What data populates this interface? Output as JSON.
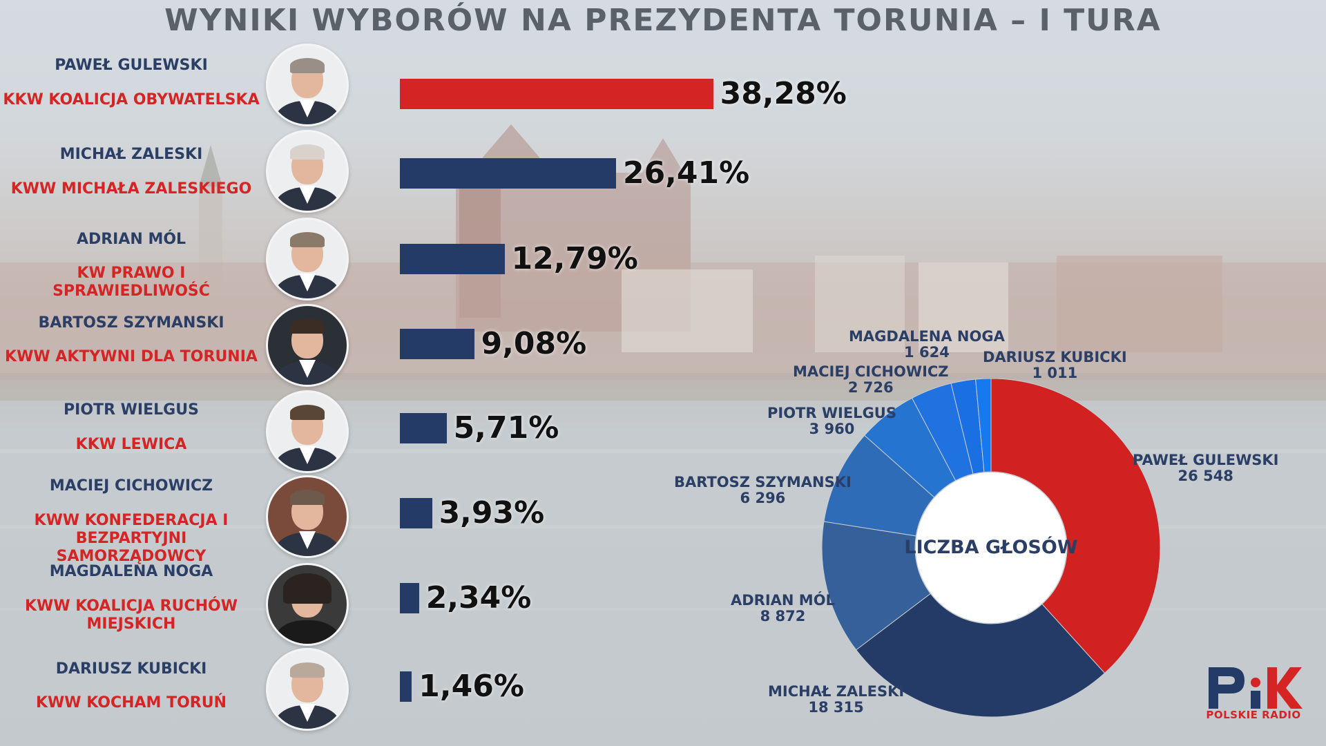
{
  "title": "WYNIKI WYBORÓW NA PREZYDENTA TORUNIA – I TURA",
  "colors": {
    "gulewski_red": "#d52424",
    "navy": "#233b66",
    "title_grey": "#5b6168"
  },
  "candidates": [
    {
      "name": "PAWEŁ GULEWSKI",
      "party": "KKW KOALICJA OBYWATELSKA",
      "pct_label": "38,28%"
    },
    {
      "name": "MICHAŁ ZALESKI",
      "party": "KWW MICHAŁA ZALESKIEGO",
      "pct_label": "26,41%"
    },
    {
      "name": "ADRIAN MÓL",
      "party": "KW PRAWO I SPRAWIEDLIWOŚĆ",
      "pct_label": "12,79%"
    },
    {
      "name": "BARTOSZ SZYMANSKI",
      "party": "KWW AKTYWNI DLA TORUNIA",
      "pct_label": "9,08%"
    },
    {
      "name": "PIOTR WIELGUS",
      "party": "KKW LEWICA",
      "pct_label": "5,71%"
    },
    {
      "name": "MACIEJ CICHOWICZ",
      "party": "KWW KONFEDERACJA I BEZPARTYJNI SAMORZĄDOWCY",
      "pct_label": "3,93%"
    },
    {
      "name": "MAGDALENA NOGA",
      "party": "KWW KOALICJA RUCHÓW MIEJSKICH",
      "pct_label": "2,34%"
    },
    {
      "name": "DARIUSZ KUBICKI",
      "party": "KWW KOCHAM TORUŃ",
      "pct_label": "1,46%"
    }
  ],
  "donut": {
    "center_label": "LICZBA GŁOSÓW",
    "labels": [
      {
        "name": "PAWEŁ GULEWSKI",
        "value_label": "26 548"
      },
      {
        "name": "MICHAŁ ZALESKI",
        "value_label": "18 315"
      },
      {
        "name": "ADRIAN MÓL",
        "value_label": "8 872"
      },
      {
        "name": "BARTOSZ SZYMANSKI",
        "value_label": "6 296"
      },
      {
        "name": "PIOTR WIELGUS",
        "value_label": "3 960"
      },
      {
        "name": "MACIEJ CICHOWICZ",
        "value_label": "2 726"
      },
      {
        "name": "MAGDALENA NOGA",
        "value_label": "1 624"
      },
      {
        "name": "DARIUSZ KUBICKI",
        "value_label": "1 011"
      }
    ]
  },
  "logo": {
    "mark": "PiK",
    "caption": "POLSKIE RADIO"
  },
  "chart_data": [
    {
      "type": "bar",
      "orientation": "horizontal",
      "categories": [
        "PAWEŁ GULEWSKI",
        "MICHAŁ ZALESKI",
        "ADRIAN MÓL",
        "BARTOSZ SZYMANSKI",
        "PIOTR WIELGUS",
        "MACIEJ CICHOWICZ",
        "MAGDALENA NOGA",
        "DARIUSZ KUBICKI"
      ],
      "values": [
        38.28,
        26.41,
        12.79,
        9.08,
        5.71,
        3.93,
        2.34,
        1.46
      ],
      "colors": [
        "#d52424",
        "#233b66",
        "#233b66",
        "#233b66",
        "#233b66",
        "#233b66",
        "#233b66",
        "#233b66"
      ]
    },
    {
      "type": "pie",
      "donut": true,
      "title": "LICZBA GŁOSÓW",
      "categories": [
        "PAWEŁ GULEWSKI",
        "MICHAŁ ZALESKI",
        "ADRIAN MÓL",
        "BARTOSZ SZYMANSKI",
        "PIOTR WIELGUS",
        "MACIEJ CICHOWICZ",
        "MAGDALENA NOGA",
        "DARIUSZ KUBICKI"
      ],
      "values": [
        26548,
        18315,
        8872,
        6296,
        3960,
        2726,
        1624,
        1011
      ],
      "colors": [
        "#d12121",
        "#233b66",
        "#35609a",
        "#2f6cb8",
        "#2474d0",
        "#1f72df",
        "#1a6fe2",
        "#1679f0"
      ]
    }
  ]
}
